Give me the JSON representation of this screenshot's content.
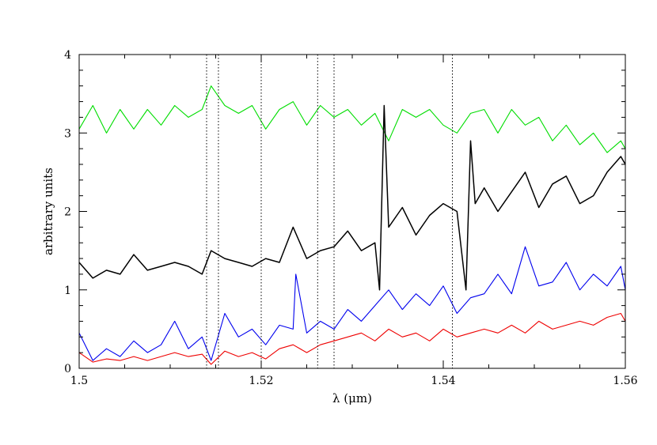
{
  "chart_data": {
    "type": "line",
    "xlabel": "λ (μm)",
    "ylabel": "arbitrary units",
    "xlim": [
      1.5,
      1.56
    ],
    "ylim": [
      0,
      4
    ],
    "xticks": [
      1.5,
      1.52,
      1.54,
      1.56
    ],
    "xtick_labels": [
      "1.5",
      "1.52",
      "1.54",
      "1.56"
    ],
    "yticks": [
      0,
      1,
      2,
      3,
      4
    ],
    "ytick_labels": [
      "0",
      "1",
      "2",
      "3",
      "4"
    ],
    "grid": false,
    "legend": "none",
    "reference_lines_x": [
      1.514,
      1.5153,
      1.52,
      1.5262,
      1.528,
      1.541
    ],
    "series": [
      {
        "color": "#00dd00",
        "x": [
          1.5,
          1.5015,
          1.503,
          1.5045,
          1.506,
          1.5075,
          1.509,
          1.5105,
          1.512,
          1.5135,
          1.5145,
          1.516,
          1.5175,
          1.519,
          1.5205,
          1.522,
          1.5235,
          1.525,
          1.5265,
          1.528,
          1.5295,
          1.531,
          1.5325,
          1.534,
          1.5355,
          1.537,
          1.5385,
          1.54,
          1.5415,
          1.543,
          1.5445,
          1.546,
          1.5475,
          1.549,
          1.5505,
          1.552,
          1.5535,
          1.555,
          1.5565,
          1.558,
          1.5595,
          1.56
        ],
        "y": [
          3.05,
          3.35,
          3.0,
          3.3,
          3.05,
          3.3,
          3.1,
          3.35,
          3.2,
          3.3,
          3.6,
          3.35,
          3.25,
          3.35,
          3.05,
          3.3,
          3.4,
          3.1,
          3.35,
          3.2,
          3.3,
          3.1,
          3.25,
          2.9,
          3.3,
          3.2,
          3.3,
          3.1,
          3.0,
          3.25,
          3.3,
          3.0,
          3.3,
          3.1,
          3.2,
          2.9,
          3.1,
          2.85,
          3.0,
          2.75,
          2.9,
          2.8
        ]
      },
      {
        "color": "#000000",
        "x": [
          1.5,
          1.5015,
          1.503,
          1.5045,
          1.506,
          1.5075,
          1.509,
          1.5105,
          1.512,
          1.5135,
          1.5145,
          1.516,
          1.5175,
          1.519,
          1.5205,
          1.522,
          1.5235,
          1.525,
          1.5265,
          1.528,
          1.5295,
          1.531,
          1.5325,
          1.533,
          1.5335,
          1.534,
          1.5355,
          1.537,
          1.5385,
          1.54,
          1.5415,
          1.5425,
          1.543,
          1.5435,
          1.5445,
          1.546,
          1.5475,
          1.549,
          1.5505,
          1.552,
          1.5535,
          1.555,
          1.5565,
          1.558,
          1.5595,
          1.56
        ],
        "y": [
          1.35,
          1.15,
          1.25,
          1.2,
          1.45,
          1.25,
          1.3,
          1.35,
          1.3,
          1.2,
          1.5,
          1.4,
          1.35,
          1.3,
          1.4,
          1.35,
          1.8,
          1.4,
          1.5,
          1.55,
          1.75,
          1.5,
          1.6,
          1.0,
          3.35,
          1.8,
          2.05,
          1.7,
          1.95,
          2.1,
          2.0,
          1.0,
          2.9,
          2.1,
          2.3,
          2.0,
          2.25,
          2.5,
          2.05,
          2.35,
          2.45,
          2.1,
          2.2,
          2.5,
          2.7,
          2.6
        ]
      },
      {
        "color": "#0000ee",
        "x": [
          1.5,
          1.5015,
          1.503,
          1.5045,
          1.506,
          1.5075,
          1.509,
          1.5105,
          1.512,
          1.5135,
          1.5145,
          1.516,
          1.5175,
          1.519,
          1.5205,
          1.522,
          1.5235,
          1.5238,
          1.525,
          1.5265,
          1.528,
          1.5295,
          1.531,
          1.5325,
          1.534,
          1.5355,
          1.537,
          1.5385,
          1.54,
          1.5415,
          1.543,
          1.5445,
          1.546,
          1.5475,
          1.549,
          1.5505,
          1.552,
          1.5535,
          1.555,
          1.5565,
          1.558,
          1.5595,
          1.56
        ],
        "y": [
          0.45,
          0.1,
          0.25,
          0.15,
          0.35,
          0.2,
          0.3,
          0.6,
          0.25,
          0.4,
          0.1,
          0.7,
          0.4,
          0.5,
          0.3,
          0.55,
          0.5,
          1.2,
          0.45,
          0.6,
          0.5,
          0.75,
          0.6,
          0.8,
          1.0,
          0.75,
          0.95,
          0.8,
          1.05,
          0.7,
          0.9,
          0.95,
          1.2,
          0.95,
          1.55,
          1.05,
          1.1,
          1.35,
          1.0,
          1.2,
          1.05,
          1.3,
          1.0
        ]
      },
      {
        "color": "#ee0000",
        "x": [
          1.5,
          1.5015,
          1.503,
          1.5045,
          1.506,
          1.5075,
          1.509,
          1.5105,
          1.512,
          1.5135,
          1.5145,
          1.516,
          1.5175,
          1.519,
          1.5205,
          1.522,
          1.5235,
          1.525,
          1.5265,
          1.528,
          1.5295,
          1.531,
          1.5325,
          1.534,
          1.5355,
          1.537,
          1.5385,
          1.54,
          1.5415,
          1.543,
          1.5445,
          1.546,
          1.5475,
          1.549,
          1.5505,
          1.552,
          1.5535,
          1.555,
          1.5565,
          1.558,
          1.5595,
          1.56
        ],
        "y": [
          0.2,
          0.08,
          0.12,
          0.1,
          0.15,
          0.1,
          0.15,
          0.2,
          0.15,
          0.18,
          0.05,
          0.22,
          0.15,
          0.2,
          0.12,
          0.25,
          0.3,
          0.2,
          0.3,
          0.35,
          0.4,
          0.45,
          0.35,
          0.5,
          0.4,
          0.45,
          0.35,
          0.5,
          0.4,
          0.45,
          0.5,
          0.45,
          0.55,
          0.45,
          0.6,
          0.5,
          0.55,
          0.6,
          0.55,
          0.65,
          0.7,
          0.6
        ]
      }
    ]
  }
}
